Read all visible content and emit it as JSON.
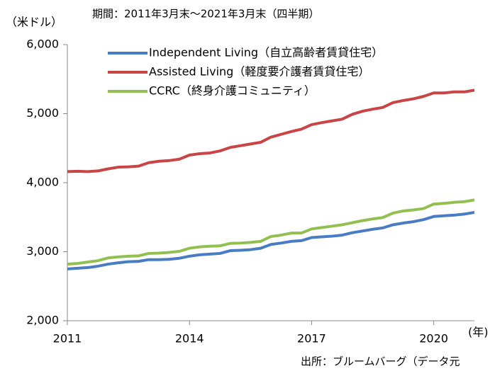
{
  "chart_data": {
    "type": "line",
    "title": "期間：2011年3月末～2021年3月末（四半期）",
    "y_label": "（米ドル）",
    "x_label": "(年)",
    "source": "出所：ブルームバーグ（データ元",
    "x": [
      2011,
      2011.25,
      2011.5,
      2011.75,
      2012,
      2012.25,
      2012.5,
      2012.75,
      2013,
      2013.25,
      2013.5,
      2013.75,
      2014,
      2014.25,
      2014.5,
      2014.75,
      2015,
      2015.25,
      2015.5,
      2015.75,
      2016,
      2016.25,
      2016.5,
      2016.75,
      2017,
      2017.25,
      2017.5,
      2017.75,
      2018,
      2018.25,
      2018.5,
      2018.75,
      2019,
      2019.25,
      2019.5,
      2019.75,
      2020,
      2020.25,
      2020.5,
      2020.75,
      2021
    ],
    "xlim": [
      2011,
      2021
    ],
    "xticks": [
      2011,
      2014,
      2017,
      2020
    ],
    "ylim": [
      2000,
      6000
    ],
    "yticks": [
      {
        "value": 2000,
        "label": "2,000"
      },
      {
        "value": 3000,
        "label": "3,000"
      },
      {
        "value": 4000,
        "label": "4,000"
      },
      {
        "value": 5000,
        "label": "5,000"
      },
      {
        "value": 6000,
        "label": "6,000"
      }
    ],
    "grid": false,
    "series": [
      {
        "name": "Independent Living（自立高齢者賃貸住宅）",
        "color": "#4a7cc4",
        "values": [
          2750,
          2760,
          2770,
          2790,
          2820,
          2840,
          2855,
          2860,
          2885,
          2885,
          2890,
          2905,
          2935,
          2955,
          2965,
          2975,
          3015,
          3020,
          3030,
          3050,
          3105,
          3125,
          3150,
          3160,
          3205,
          3215,
          3225,
          3240,
          3275,
          3300,
          3325,
          3345,
          3390,
          3415,
          3435,
          3465,
          3510,
          3520,
          3530,
          3545,
          3570
        ]
      },
      {
        "name": "Assisted Living（軽度要介護者賃貸住宅）",
        "color": "#c94545",
        "values": [
          4160,
          4165,
          4160,
          4170,
          4200,
          4225,
          4230,
          4240,
          4290,
          4310,
          4320,
          4340,
          4400,
          4420,
          4430,
          4460,
          4510,
          4535,
          4560,
          4585,
          4660,
          4700,
          4740,
          4775,
          4840,
          4870,
          4895,
          4920,
          4990,
          5035,
          5065,
          5090,
          5160,
          5190,
          5215,
          5250,
          5300,
          5300,
          5315,
          5315,
          5340
        ]
      },
      {
        "name": "CCRC（終身介護コミュニティ）",
        "color": "#92c050",
        "values": [
          2820,
          2830,
          2850,
          2870,
          2910,
          2925,
          2935,
          2940,
          2975,
          2980,
          2990,
          3005,
          3050,
          3070,
          3080,
          3085,
          3120,
          3125,
          3135,
          3150,
          3220,
          3240,
          3270,
          3270,
          3330,
          3350,
          3370,
          3390,
          3420,
          3450,
          3475,
          3495,
          3560,
          3590,
          3605,
          3625,
          3690,
          3700,
          3715,
          3725,
          3750
        ]
      }
    ]
  }
}
